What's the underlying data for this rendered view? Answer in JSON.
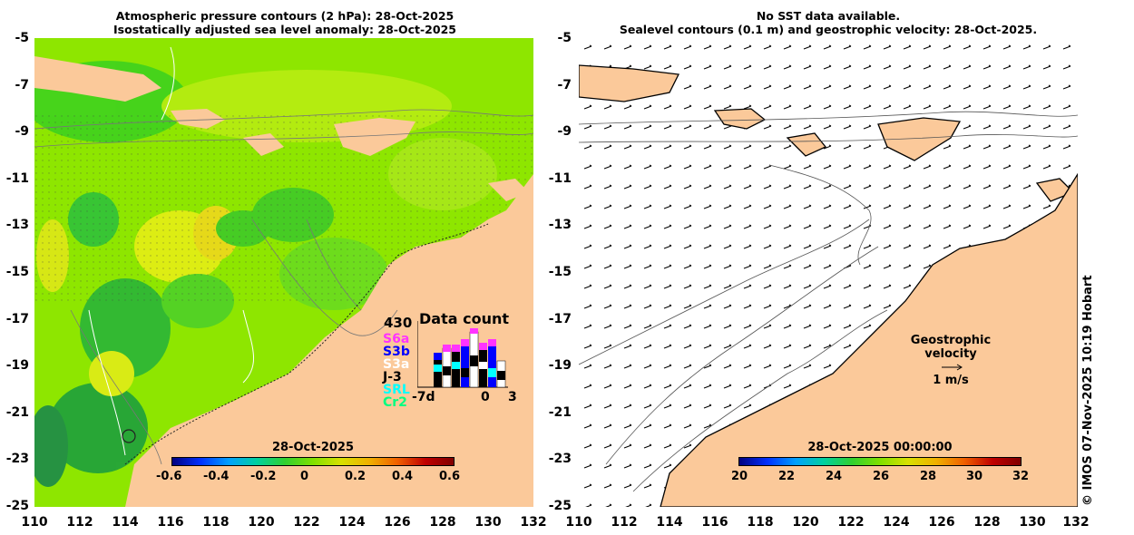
{
  "left_panel": {
    "title_line1": "Atmospheric pressure contours (2 hPa): 28-Oct-2025",
    "title_line2": "Isostatically adjusted sea level anomaly: 28-Oct-2025",
    "colorbar": {
      "date": "28-Oct-2025",
      "ticks": [
        "-0.6",
        "-0.4",
        "-0.2",
        "0",
        "0.2",
        "0.4",
        "0.6"
      ]
    },
    "data_count": {
      "title": "Data count",
      "max": "430",
      "missions": [
        "S6a",
        "S3b",
        "S3a",
        "J-3",
        "SRL",
        "Cr2"
      ],
      "mission_colors": [
        "#ff33ff",
        "#0000ff",
        "#ffffff",
        "#000000",
        "#00ffff",
        "#00ff80"
      ],
      "x_start": "-7d",
      "x_zero": "0",
      "x_end": "3"
    }
  },
  "right_panel": {
    "title_line1": "No SST data available.",
    "title_line2": "Sealevel contours (0.1 m) and geostrophic velocity: 28-Oct-2025.",
    "legend_line1": "Geostrophic velocity",
    "legend_line2": "1 m/s",
    "colorbar": {
      "date": "28-Oct-2025 00:00:00",
      "ticks": [
        "20",
        "22",
        "24",
        "26",
        "28",
        "30",
        "32"
      ]
    }
  },
  "axes": {
    "y_ticks": [
      "-5",
      "-7",
      "-9",
      "-11",
      "-13",
      "-15",
      "-17",
      "-19",
      "-21",
      "-23",
      "-25"
    ],
    "x_ticks": [
      "110",
      "112",
      "114",
      "116",
      "118",
      "120",
      "122",
      "124",
      "126",
      "128",
      "130",
      "132"
    ]
  },
  "credit": "© IMOS 07-Nov-2025 10:19 Hobart",
  "colors": {
    "land": "#fbc99a",
    "ocean_green": "#7ee000",
    "ocean_yellow": "#cfef10",
    "ocean_dark": "#22b83a"
  }
}
